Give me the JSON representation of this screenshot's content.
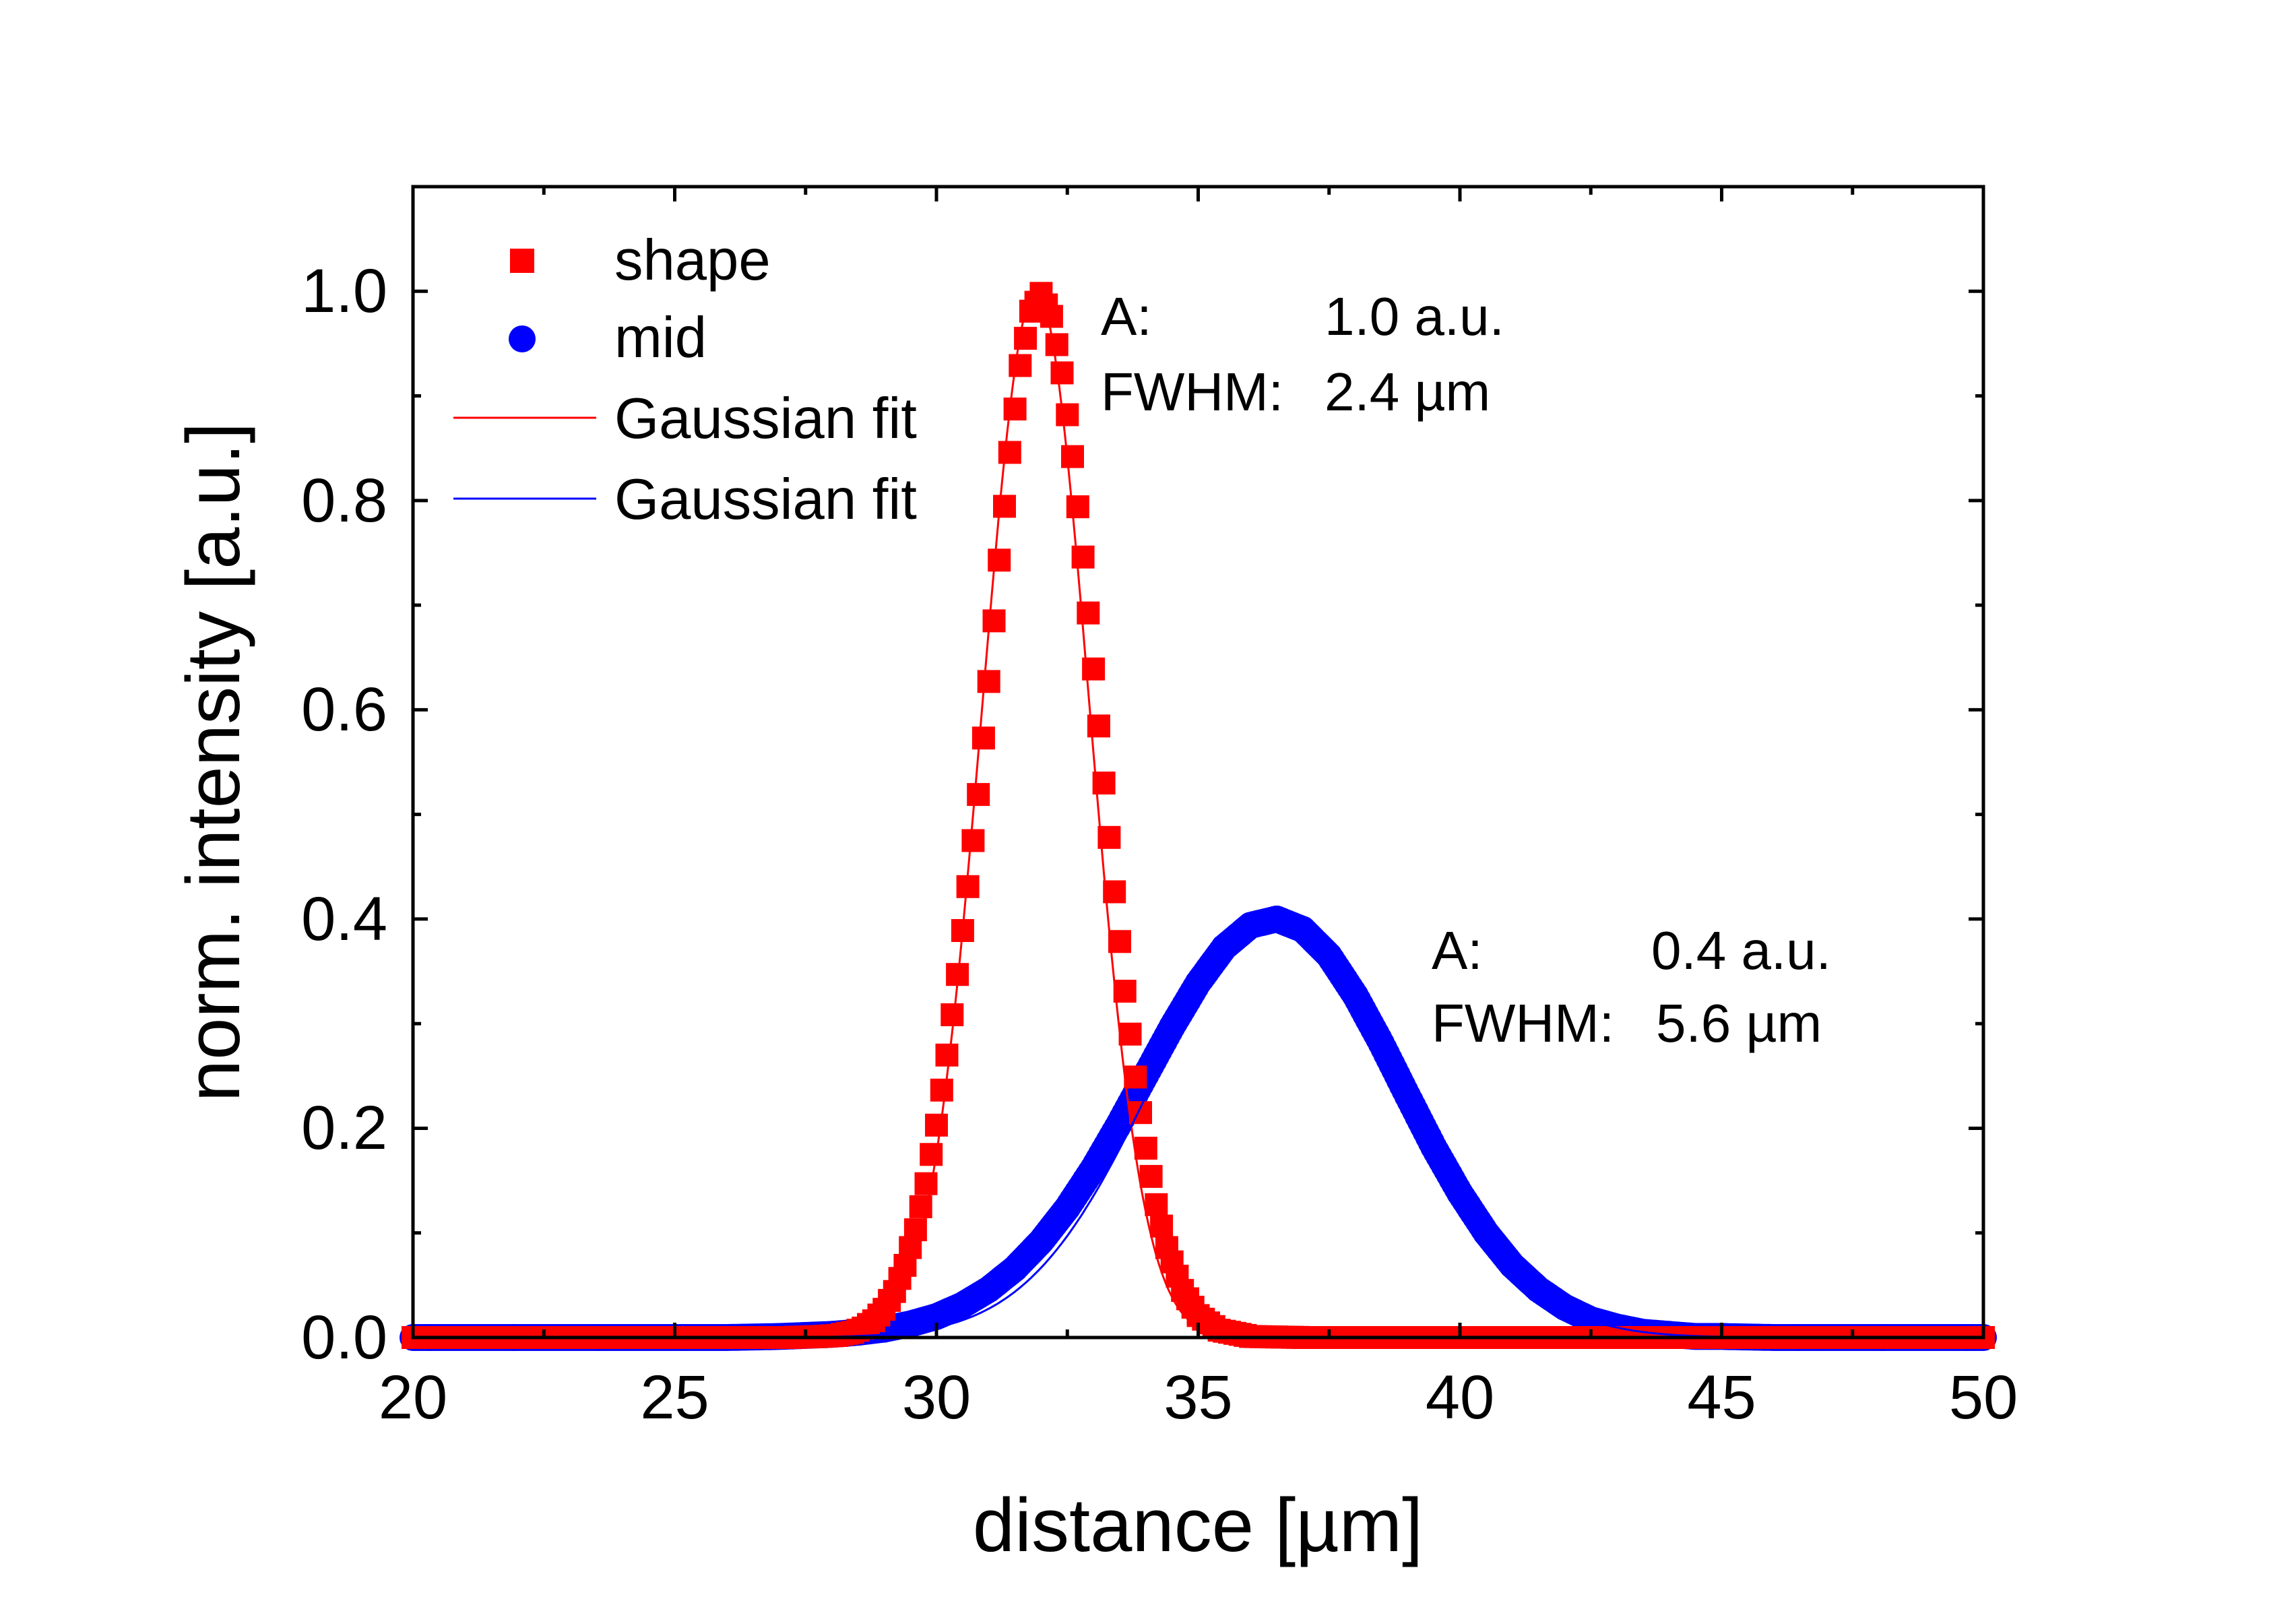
{
  "chart_data": {
    "type": "scatter",
    "xlabel": "distance [µm]",
    "ylabel": "norm. intensity [a.u.]",
    "xlim": [
      20,
      50
    ],
    "ylim": [
      0,
      1.1
    ],
    "xticks": [
      "20",
      "25",
      "30",
      "35",
      "40",
      "45",
      "50"
    ],
    "yticks": [
      "0.0",
      "0.2",
      "0.4",
      "0.6",
      "0.8",
      "1.0"
    ],
    "grid": false,
    "legend_position": "top-left",
    "legend": [
      {
        "label": "shape",
        "kind": "square-marker",
        "color": "#ff0000"
      },
      {
        "label": "mid",
        "kind": "circle-marker",
        "color": "#0000ff"
      },
      {
        "label": "Gaussian fit",
        "kind": "line",
        "color": "#ff0000"
      },
      {
        "label": "Gaussian fit",
        "kind": "line",
        "color": "#0000ff"
      }
    ],
    "series": [
      {
        "name": "shape",
        "marker": "square",
        "color": "#ff0000",
        "x": [
          20.0,
          20.6,
          21.2,
          21.8,
          22.4,
          23.0,
          23.6,
          24.2,
          24.8,
          25.4,
          26.0,
          26.6,
          27.2,
          27.8,
          28.1,
          28.4,
          28.6,
          28.8,
          29.0,
          29.2,
          29.4,
          29.6,
          29.8,
          30.0,
          30.2,
          30.4,
          30.6,
          30.8,
          31.0,
          31.2,
          31.4,
          31.6,
          31.8,
          32.0,
          32.2,
          32.4,
          32.6,
          32.8,
          33.0,
          33.2,
          33.4,
          33.6,
          33.8,
          34.0,
          34.2,
          34.4,
          34.7,
          35.0,
          35.4,
          36.0,
          37.0,
          38.0,
          39.0,
          40.0,
          41.0,
          42.0,
          43.0,
          44.0,
          45.0,
          46.0,
          47.0,
          48.0,
          49.0,
          50.0
        ],
        "y": [
          0.0,
          0.0,
          0.0,
          0.0,
          0.0,
          0.0,
          0.0,
          0.0,
          0.0,
          0.0,
          0.0,
          0.0,
          0.0,
          0.001,
          0.002,
          0.005,
          0.009,
          0.016,
          0.027,
          0.044,
          0.069,
          0.103,
          0.147,
          0.203,
          0.27,
          0.347,
          0.431,
          0.519,
          0.627,
          0.743,
          0.846,
          0.929,
          0.981,
          0.998,
          0.976,
          0.922,
          0.842,
          0.746,
          0.639,
          0.53,
          0.426,
          0.331,
          0.249,
          0.181,
          0.127,
          0.086,
          0.045,
          0.021,
          0.007,
          0.001,
          0.0,
          0.0,
          0.0,
          0.0,
          0.0,
          0.0,
          0.0,
          0.0,
          0.0,
          0.0,
          0.0,
          0.0,
          0.0,
          0.0
        ]
      },
      {
        "name": "mid",
        "marker": "circle",
        "color": "#0000ff",
        "x": [
          20.0,
          21.0,
          22.0,
          23.0,
          24.0,
          25.0,
          26.0,
          27.0,
          28.0,
          28.5,
          29.0,
          29.5,
          30.0,
          30.5,
          31.0,
          31.5,
          32.0,
          32.5,
          33.0,
          33.5,
          34.0,
          34.5,
          35.0,
          35.5,
          36.0,
          36.5,
          37.0,
          37.5,
          38.0,
          38.5,
          39.0,
          39.5,
          40.0,
          40.5,
          41.0,
          41.5,
          42.0,
          42.5,
          43.0,
          43.5,
          44.0,
          44.5,
          45.0,
          46.0,
          47.0,
          48.0,
          49.0,
          50.0
        ],
        "y": [
          0.0,
          0.0,
          0.0,
          0.0,
          0.0,
          0.0,
          0.0,
          0.001,
          0.003,
          0.005,
          0.008,
          0.013,
          0.02,
          0.031,
          0.046,
          0.066,
          0.092,
          0.124,
          0.162,
          0.205,
          0.251,
          0.297,
          0.339,
          0.373,
          0.394,
          0.4,
          0.39,
          0.365,
          0.327,
          0.281,
          0.231,
          0.182,
          0.138,
          0.1,
          0.069,
          0.046,
          0.029,
          0.017,
          0.01,
          0.005,
          0.003,
          0.001,
          0.001,
          0.0,
          0.0,
          0.0,
          0.0,
          0.0
        ]
      },
      {
        "name": "Gaussian fit",
        "kind": "fit-line",
        "color": "#ff0000",
        "model": "gaussian",
        "amplitude": 1.0,
        "center": 31.9,
        "fwhm": 2.4
      },
      {
        "name": "Gaussian fit",
        "kind": "fit-line",
        "color": "#0000ff",
        "model": "gaussian",
        "amplitude": 0.4,
        "center": 36.5,
        "fwhm": 5.6
      }
    ],
    "annotations": [
      {
        "label": "A:",
        "value": "1.0 a.u."
      },
      {
        "label": "FWHM:",
        "value": "2.4 µm"
      },
      {
        "label": "A:",
        "value": "0.4 a.u."
      },
      {
        "label": "FWHM:",
        "value": "5.6 µm"
      }
    ]
  }
}
